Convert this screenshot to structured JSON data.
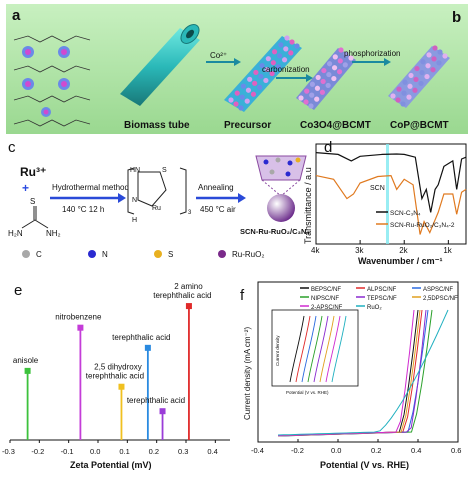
{
  "panels": {
    "a": {
      "letter": "a",
      "labels": [
        "Biomass tube",
        "Precursor",
        "Co3O4@BCMT",
        "CoP@BCMT"
      ],
      "arrows": [
        "Co²⁺",
        "carbonization",
        "phosphorization"
      ]
    },
    "b": {
      "letter": "b"
    },
    "c": {
      "letter": "c",
      "reactant": "Ru³⁺",
      "plus": "+",
      "thiourea_nh2": "NH₂",
      "thiourea_h2n": "H₂N",
      "thiourea_s": "S",
      "step1": "Hydrothermal method",
      "step1_cond": "140 °C  12 h",
      "step2": "Annealing",
      "step2_cond": "450 °C  air",
      "complex_hn": "HN",
      "complex_s1": "S",
      "complex_s2": "S",
      "complex_ru": "Ru",
      "complex_sub": "3",
      "complex_n": "N",
      "complex_h": "H",
      "complex_nh": "NH",
      "product": "SCN-Ru-RuO₂/C₃N₄",
      "legend": [
        "C",
        "N",
        "S",
        "Ru-RuO₂"
      ],
      "legend_colors": [
        "#a8a8a8",
        "#2a2ad0",
        "#e8b020",
        "#7a2a8a"
      ]
    },
    "d": {
      "letter": "d",
      "annotation": "SCN",
      "legend": [
        "SCN-C₃N₄",
        "SCN-Ru-RuO₂/C₃N₄-2"
      ]
    },
    "e": {
      "letter": "e"
    },
    "f": {
      "letter": "f",
      "legend": [
        "BEPSC/NF",
        "ALPSC/NF",
        "ASPSC/NF",
        "NIPSC/NF",
        "TEPSC/NF",
        "2,5DPSC/NF",
        "2-APSC/NF",
        "RuO₂"
      ],
      "inset_xlabel": "Potential (V vs. RHE)",
      "inset_ylabel": "Current density"
    }
  },
  "chart_data": [
    {
      "panel": "d",
      "type": "line",
      "xlabel": "Wavenumber / cm⁻¹",
      "ylabel": "Transmittance / a.u",
      "x_ticks": [
        "4k",
        "3k",
        "2k",
        "1k"
      ],
      "xlim": [
        4000,
        600
      ],
      "series": [
        {
          "name": "SCN-C₃N₄",
          "color": "#111111",
          "points": [
            [
              4000,
              0.95
            ],
            [
              3500,
              0.93
            ],
            [
              3200,
              0.86
            ],
            [
              3000,
              0.91
            ],
            [
              2500,
              0.93
            ],
            [
              2170,
              0.935
            ],
            [
              2000,
              0.93
            ],
            [
              1750,
              0.9
            ],
            [
              1600,
              0.45
            ],
            [
              1500,
              0.55
            ],
            [
              1400,
              0.3
            ],
            [
              1300,
              0.55
            ],
            [
              1230,
              0.6
            ],
            [
              1100,
              0.8
            ],
            [
              900,
              0.86
            ],
            [
              810,
              0.55
            ],
            [
              700,
              0.88
            ],
            [
              600,
              0.9
            ]
          ]
        },
        {
          "name": "SCN-Ru-RuO₂/C₃N₄-2",
          "color": "#e07a20",
          "points": [
            [
              4000,
              0.7
            ],
            [
              3600,
              0.66
            ],
            [
              3300,
              0.45
            ],
            [
              3150,
              0.5
            ],
            [
              3000,
              0.62
            ],
            [
              2600,
              0.69
            ],
            [
              2300,
              0.7
            ],
            [
              2170,
              0.55
            ],
            [
              2000,
              0.66
            ],
            [
              1800,
              0.6
            ],
            [
              1640,
              0.06
            ],
            [
              1550,
              0.2
            ],
            [
              1420,
              0.08
            ],
            [
              1300,
              0.22
            ],
            [
              1230,
              0.3
            ],
            [
              1100,
              0.5
            ],
            [
              900,
              0.5
            ],
            [
              810,
              0.28
            ],
            [
              700,
              0.52
            ],
            [
              600,
              0.55
            ]
          ]
        }
      ]
    },
    {
      "panel": "e",
      "type": "bar",
      "xlabel": "Zeta Potential (mV)",
      "xlim": [
        -0.3,
        0.45
      ],
      "x_ticks": [
        -0.3,
        -0.2,
        -0.1,
        0.0,
        0.1,
        0.2,
        0.3,
        0.4
      ],
      "points": [
        {
          "label": "anisole",
          "x": -0.24,
          "h": 0.48,
          "color": "#3cc23c"
        },
        {
          "label": "nitrobenzene",
          "x": -0.06,
          "h": 0.78,
          "color": "#c43cd8"
        },
        {
          "label": "2,5 dihydroxy terephthalic acid",
          "x": 0.08,
          "h": 0.37,
          "color": "#f0c020"
        },
        {
          "label": "terephthalic acid",
          "x": 0.17,
          "h": 0.64,
          "color": "#2a8ae0"
        },
        {
          "label": "terephthalic acid",
          "x": 0.22,
          "h": 0.2,
          "color": "#9a3cd8"
        },
        {
          "label": "2 amino terephthalic acid",
          "x": 0.31,
          "h": 0.93,
          "color": "#e02a2a"
        }
      ]
    },
    {
      "panel": "f",
      "type": "line",
      "xlabel": "Potential (V vs. RHE)",
      "ylabel": "Current density (mA cm⁻²)",
      "xlim": [
        -0.4,
        0.6
      ],
      "x_ticks": [
        -0.4,
        -0.2,
        0.0,
        0.2,
        0.4,
        0.6
      ],
      "series": [
        {
          "name": "BEPSC/NF",
          "color": "#111111",
          "onset": 0.31,
          "top": 0.4
        },
        {
          "name": "ALPSC/NF",
          "color": "#e02a2a",
          "onset": 0.33,
          "top": 0.42
        },
        {
          "name": "ASPSC/NF",
          "color": "#2a6ae0",
          "onset": 0.35,
          "top": 0.45
        },
        {
          "name": "NIPSC/NF",
          "color": "#2aa02a",
          "onset": 0.37,
          "top": 0.47
        },
        {
          "name": "TEPSC/NF",
          "color": "#8a2ad0",
          "onset": 0.36,
          "top": 0.44
        },
        {
          "name": "2,5DPSC/NF",
          "color": "#e0a020",
          "onset": 0.32,
          "top": 0.41
        },
        {
          "name": "2-APSC/NF",
          "color": "#d02ad0",
          "onset": 0.3,
          "top": 0.38
        },
        {
          "name": "RuO₂",
          "color": "#20b0c0",
          "onset": 0.2,
          "top": 0.55
        }
      ]
    }
  ]
}
